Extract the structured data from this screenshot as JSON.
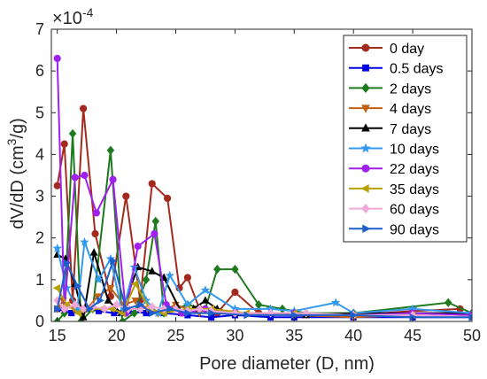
{
  "chart_data": {
    "type": "line",
    "xlabel": "Pore diameter (D, nm)",
    "ylabel": "dV/dD (cm3/g)",
    "ylabel_base": "dV/dD (cm",
    "ylabel_sup": "3",
    "ylabel_tail": "/g)",
    "y_multiplier_base": "×10",
    "y_multiplier_exp": "-4",
    "xlim": [
      14.5,
      50
    ],
    "ylim": [
      0,
      7
    ],
    "x_ticks": [
      15,
      20,
      25,
      30,
      35,
      40,
      45,
      50
    ],
    "y_ticks": [
      0,
      1,
      2,
      3,
      4,
      5,
      6,
      7
    ],
    "grid": false,
    "legend_position": "top-right",
    "series": [
      {
        "name": "0 day",
        "color": "#A52A1E",
        "marker": "circle",
        "x": [
          15,
          15.6,
          16.3,
          17.2,
          18.2,
          19.5,
          20.8,
          22,
          23,
          24.3,
          25.3,
          26,
          27,
          28.5,
          30,
          32,
          35,
          40,
          45,
          49
        ],
        "y": [
          3.25,
          4.25,
          0.5,
          5.1,
          2.1,
          0.6,
          3.0,
          0.5,
          3.3,
          2.95,
          0.8,
          1.05,
          0.3,
          0.2,
          0.7,
          0.2,
          0.15,
          0.15,
          0.25,
          0.3
        ]
      },
      {
        "name": "0.5 days",
        "color": "#0000E6",
        "marker": "square",
        "x": [
          15,
          16.2,
          17.5,
          18.5,
          19.8,
          21,
          22.5,
          24,
          26,
          28,
          30,
          33,
          35,
          40,
          45,
          50
        ],
        "y": [
          0.3,
          0.2,
          0.3,
          0.25,
          0.2,
          0.25,
          0.2,
          0.2,
          0.15,
          0.1,
          0.15,
          0.1,
          0.1,
          0.1,
          0.1,
          0.1
        ]
      },
      {
        "name": "2 days",
        "color": "#1E7A1E",
        "marker": "diamond",
        "x": [
          15,
          15.6,
          16.3,
          17.0,
          18.0,
          19.5,
          20.5,
          21.5,
          22.5,
          23.3,
          24,
          26,
          27.5,
          28.5,
          30,
          32,
          34,
          36,
          40,
          48,
          50
        ],
        "y": [
          0,
          0.2,
          4.5,
          0,
          0.3,
          4.1,
          0,
          0.2,
          1.0,
          2.4,
          0.2,
          0.4,
          0.3,
          1.25,
          1.25,
          0.4,
          0.3,
          0.2,
          0.2,
          0.45,
          0.2
        ]
      },
      {
        "name": "4 days",
        "color": "#C06010",
        "marker": "tri-down",
        "x": [
          15,
          15.5,
          16.4,
          17.2,
          18.4,
          19.5,
          20.6,
          21.6,
          22.6,
          23.5,
          25,
          27,
          30,
          35,
          40,
          45,
          50
        ],
        "y": [
          0.3,
          0.5,
          0.3,
          0.2,
          0.6,
          0.8,
          0.4,
          0.5,
          0.3,
          0.2,
          0.4,
          0.2,
          0.2,
          0.15,
          0.1,
          0.15,
          0.1
        ]
      },
      {
        "name": "7 days",
        "color": "#000000",
        "marker": "tri-up",
        "x": [
          15,
          15.7,
          16.5,
          17.2,
          18.1,
          19.3,
          20.4,
          21.8,
          23,
          24,
          25.5,
          26.5,
          27.5,
          28.5,
          30,
          33,
          36,
          40,
          45,
          50
        ],
        "y": [
          1.6,
          1.5,
          0.9,
          0.1,
          1.65,
          0.5,
          0.2,
          1.3,
          1.2,
          1.05,
          0.2,
          0.3,
          0.5,
          0.3,
          0.2,
          0.2,
          0.15,
          0.2,
          0.2,
          0.2
        ]
      },
      {
        "name": "10 days",
        "color": "#3399EE",
        "marker": "star",
        "x": [
          15,
          15.8,
          16.7,
          17.3,
          18.5,
          19.5,
          20.5,
          21.5,
          22.5,
          23.5,
          24.5,
          26,
          27.5,
          30,
          33,
          35,
          38.5,
          40,
          45,
          50
        ],
        "y": [
          1.75,
          0.8,
          0.3,
          1.9,
          1.0,
          1.5,
          0.2,
          1.3,
          0.5,
          0.2,
          1.1,
          0.4,
          0.75,
          0.3,
          0.3,
          0.25,
          0.45,
          0.2,
          0.3,
          0.2
        ]
      },
      {
        "name": "22 days",
        "color": "#A020F0",
        "marker": "circle",
        "x": [
          15,
          15.6,
          16.5,
          17.3,
          18.3,
          19.7,
          20.8,
          21.8,
          23.2,
          24.2,
          25.5,
          27.5,
          30,
          35,
          40,
          45,
          50
        ],
        "y": [
          6.3,
          0.3,
          3.45,
          3.5,
          2.6,
          3.4,
          0.2,
          1.8,
          2.1,
          0.4,
          0.2,
          0.3,
          0.2,
          0.2,
          0.15,
          0.2,
          0.15
        ]
      },
      {
        "name": "35 days",
        "color": "#B8A000",
        "marker": "tri-left",
        "x": [
          15,
          15.8,
          16.8,
          17.8,
          18.8,
          19.6,
          20.5,
          21.6,
          22.8,
          24,
          26,
          28,
          31,
          35,
          40,
          45,
          50
        ],
        "y": [
          0.8,
          0.4,
          0.2,
          0.3,
          0.3,
          0.3,
          0.2,
          0.9,
          0.3,
          0.2,
          0.3,
          0.3,
          0.2,
          0.2,
          0.15,
          0.15,
          0.1
        ]
      },
      {
        "name": "60 days",
        "color": "#F0A8D8",
        "marker": "diamond",
        "x": [
          15,
          15.6,
          16.5,
          17.2,
          18,
          19,
          20,
          21,
          22,
          23,
          24,
          25,
          26,
          27,
          28,
          30,
          33,
          36,
          40,
          45,
          50
        ],
        "y": [
          0.5,
          0.3,
          0.4,
          0.3,
          0.35,
          0.3,
          0.4,
          0.3,
          0.3,
          0.35,
          0.3,
          0.3,
          0.25,
          0.3,
          0.25,
          0.2,
          0.2,
          0.2,
          0.15,
          0.15,
          0.1
        ]
      },
      {
        "name": "90 days",
        "color": "#1E5FCC",
        "marker": "tri-right",
        "x": [
          15,
          15.8,
          16.7,
          17.7,
          18.6,
          19.7,
          20.8,
          22,
          23,
          24.5,
          26,
          28,
          31,
          35,
          40,
          45,
          50
        ],
        "y": [
          0.3,
          1.4,
          0.85,
          0.3,
          0.5,
          1.45,
          0.3,
          0.4,
          0.2,
          0.3,
          0.2,
          0.2,
          0.15,
          0.15,
          0.15,
          0.1,
          0.1
        ]
      }
    ]
  }
}
